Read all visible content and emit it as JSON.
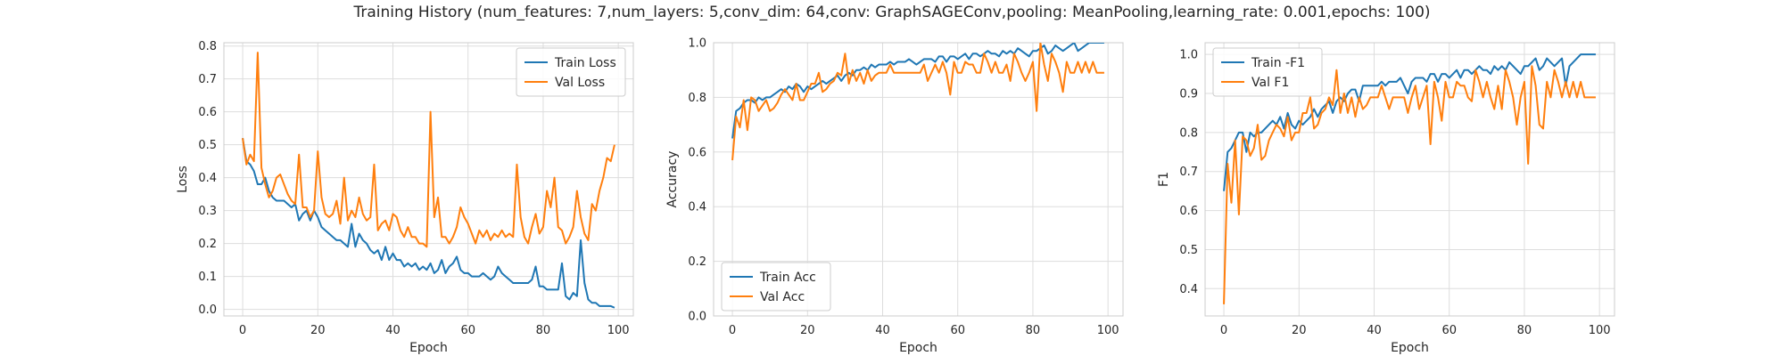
{
  "figure": {
    "suptitle": "Training History (num_features: 7,num_layers: 5,conv_dim: 64,conv: GraphSAGEConv,pooling: MeanPooling,learning_rate: 0.001,epochs: 100)"
  },
  "colors": {
    "series1": "#1f77b4",
    "series2": "#ff7f0e",
    "grid": "#dddddd",
    "frame": "#cccccc"
  },
  "chart_data": [
    {
      "type": "line",
      "xlabel": "Epoch",
      "ylabel": "Loss",
      "xlim": [
        -5,
        104
      ],
      "ylim": [
        -0.02,
        0.81
      ],
      "xticks": [
        0,
        20,
        40,
        60,
        80,
        100
      ],
      "yticks": [
        0.0,
        0.1,
        0.2,
        0.3,
        0.4,
        0.5,
        0.6,
        0.7,
        0.8
      ],
      "ytick_decimals": 1,
      "legend": "top-right",
      "series": [
        {
          "name": "Train Loss",
          "values": [
            0.52,
            0.45,
            0.44,
            0.42,
            0.38,
            0.38,
            0.4,
            0.36,
            0.34,
            0.33,
            0.33,
            0.33,
            0.32,
            0.31,
            0.32,
            0.27,
            0.29,
            0.3,
            0.27,
            0.3,
            0.28,
            0.25,
            0.24,
            0.23,
            0.22,
            0.21,
            0.21,
            0.2,
            0.19,
            0.26,
            0.19,
            0.23,
            0.21,
            0.2,
            0.18,
            0.17,
            0.18,
            0.15,
            0.19,
            0.15,
            0.17,
            0.15,
            0.15,
            0.13,
            0.14,
            0.13,
            0.14,
            0.12,
            0.13,
            0.12,
            0.14,
            0.11,
            0.12,
            0.15,
            0.11,
            0.13,
            0.14,
            0.16,
            0.12,
            0.11,
            0.11,
            0.1,
            0.1,
            0.1,
            0.11,
            0.1,
            0.09,
            0.1,
            0.13,
            0.11,
            0.1,
            0.09,
            0.08,
            0.08,
            0.08,
            0.08,
            0.08,
            0.09,
            0.13,
            0.07,
            0.07,
            0.06,
            0.06,
            0.06,
            0.06,
            0.14,
            0.04,
            0.03,
            0.05,
            0.04,
            0.21,
            0.08,
            0.03,
            0.02,
            0.02,
            0.01,
            0.01,
            0.01,
            0.01,
            0.005
          ]
        },
        {
          "name": "Val Loss",
          "values": [
            0.52,
            0.44,
            0.47,
            0.45,
            0.78,
            0.43,
            0.38,
            0.34,
            0.36,
            0.4,
            0.41,
            0.38,
            0.35,
            0.33,
            0.32,
            0.47,
            0.31,
            0.31,
            0.28,
            0.3,
            0.48,
            0.34,
            0.29,
            0.28,
            0.29,
            0.33,
            0.26,
            0.4,
            0.27,
            0.3,
            0.28,
            0.34,
            0.29,
            0.27,
            0.28,
            0.44,
            0.24,
            0.26,
            0.27,
            0.24,
            0.29,
            0.28,
            0.24,
            0.22,
            0.25,
            0.22,
            0.22,
            0.2,
            0.2,
            0.19,
            0.6,
            0.28,
            0.34,
            0.22,
            0.22,
            0.2,
            0.22,
            0.25,
            0.31,
            0.28,
            0.26,
            0.23,
            0.2,
            0.24,
            0.22,
            0.24,
            0.21,
            0.23,
            0.22,
            0.24,
            0.22,
            0.23,
            0.22,
            0.44,
            0.28,
            0.22,
            0.2,
            0.25,
            0.29,
            0.23,
            0.25,
            0.36,
            0.31,
            0.4,
            0.25,
            0.24,
            0.2,
            0.22,
            0.25,
            0.36,
            0.28,
            0.23,
            0.21,
            0.32,
            0.3,
            0.36,
            0.4,
            0.46,
            0.45,
            0.5
          ]
        }
      ]
    },
    {
      "type": "line",
      "xlabel": "Epoch",
      "ylabel": "Accuracy",
      "xlim": [
        -5,
        104
      ],
      "ylim": [
        0.0,
        1.0
      ],
      "xticks": [
        0,
        20,
        40,
        60,
        80,
        100
      ],
      "yticks": [
        0.0,
        0.2,
        0.4,
        0.6,
        0.8,
        1.0
      ],
      "ytick_decimals": 1,
      "legend": "bottom-left",
      "series": [
        {
          "name": "Train Acc",
          "values": [
            0.65,
            0.75,
            0.76,
            0.78,
            0.79,
            0.79,
            0.78,
            0.8,
            0.79,
            0.8,
            0.8,
            0.81,
            0.82,
            0.83,
            0.82,
            0.84,
            0.83,
            0.85,
            0.84,
            0.82,
            0.84,
            0.83,
            0.84,
            0.85,
            0.86,
            0.85,
            0.86,
            0.87,
            0.88,
            0.86,
            0.88,
            0.89,
            0.88,
            0.9,
            0.9,
            0.91,
            0.9,
            0.92,
            0.91,
            0.92,
            0.92,
            0.92,
            0.93,
            0.92,
            0.93,
            0.93,
            0.93,
            0.94,
            0.93,
            0.92,
            0.93,
            0.94,
            0.94,
            0.94,
            0.93,
            0.95,
            0.95,
            0.93,
            0.95,
            0.95,
            0.94,
            0.95,
            0.96,
            0.94,
            0.96,
            0.96,
            0.95,
            0.96,
            0.97,
            0.96,
            0.96,
            0.95,
            0.97,
            0.96,
            0.97,
            0.96,
            0.98,
            0.97,
            0.96,
            0.95,
            0.97,
            0.97,
            0.98,
            0.99,
            0.96,
            0.97,
            0.99,
            0.98,
            0.97,
            0.98,
            0.99,
            1.0,
            0.97,
            0.98,
            0.99,
            1.0,
            1.0,
            1.0,
            1.0,
            1.0
          ]
        },
        {
          "name": "Val Acc",
          "values": [
            0.57,
            0.73,
            0.69,
            0.79,
            0.68,
            0.8,
            0.79,
            0.75,
            0.77,
            0.79,
            0.75,
            0.76,
            0.78,
            0.81,
            0.83,
            0.81,
            0.79,
            0.85,
            0.79,
            0.79,
            0.82,
            0.85,
            0.85,
            0.89,
            0.82,
            0.83,
            0.85,
            0.86,
            0.89,
            0.88,
            0.96,
            0.85,
            0.9,
            0.86,
            0.89,
            0.85,
            0.9,
            0.86,
            0.88,
            0.89,
            0.89,
            0.89,
            0.92,
            0.89,
            0.89,
            0.89,
            0.89,
            0.89,
            0.89,
            0.89,
            0.89,
            0.92,
            0.86,
            0.89,
            0.92,
            0.89,
            0.93,
            0.89,
            0.81,
            0.93,
            0.89,
            0.89,
            0.93,
            0.92,
            0.92,
            0.89,
            0.89,
            0.96,
            0.93,
            0.89,
            0.93,
            0.89,
            0.89,
            0.92,
            0.86,
            0.96,
            0.93,
            0.89,
            0.86,
            0.89,
            0.93,
            0.75,
            1.0,
            0.92,
            0.86,
            0.96,
            0.93,
            0.89,
            0.82,
            0.93,
            0.89,
            0.89,
            0.93,
            0.89,
            0.93,
            0.89,
            0.93,
            0.89,
            0.89,
            0.89
          ]
        }
      ]
    },
    {
      "type": "line",
      "xlabel": "Epoch",
      "ylabel": "F1",
      "xlim": [
        -5,
        104
      ],
      "ylim": [
        0.33,
        1.03
      ],
      "xticks": [
        0,
        20,
        40,
        60,
        80,
        100
      ],
      "yticks": [
        0.4,
        0.5,
        0.6,
        0.7,
        0.8,
        0.9,
        1.0
      ],
      "ytick_decimals": 1,
      "legend": "top-left",
      "series": [
        {
          "name": "Train -F1",
          "values": [
            0.65,
            0.75,
            0.76,
            0.78,
            0.8,
            0.8,
            0.75,
            0.8,
            0.79,
            0.8,
            0.8,
            0.81,
            0.82,
            0.83,
            0.82,
            0.84,
            0.81,
            0.85,
            0.82,
            0.81,
            0.83,
            0.82,
            0.83,
            0.84,
            0.86,
            0.84,
            0.86,
            0.87,
            0.88,
            0.85,
            0.88,
            0.89,
            0.88,
            0.9,
            0.91,
            0.91,
            0.88,
            0.92,
            0.92,
            0.92,
            0.92,
            0.92,
            0.93,
            0.92,
            0.93,
            0.93,
            0.93,
            0.94,
            0.92,
            0.9,
            0.93,
            0.94,
            0.94,
            0.94,
            0.93,
            0.95,
            0.95,
            0.93,
            0.95,
            0.95,
            0.94,
            0.95,
            0.96,
            0.94,
            0.96,
            0.96,
            0.95,
            0.96,
            0.97,
            0.96,
            0.96,
            0.95,
            0.97,
            0.96,
            0.97,
            0.96,
            0.98,
            0.97,
            0.96,
            0.95,
            0.97,
            0.97,
            0.98,
            0.99,
            0.96,
            0.97,
            0.99,
            0.98,
            0.97,
            0.98,
            0.99,
            0.92,
            0.97,
            0.98,
            0.99,
            1.0,
            1.0,
            1.0,
            1.0,
            1.0
          ]
        },
        {
          "name": "Val F1",
          "values": [
            0.36,
            0.72,
            0.62,
            0.78,
            0.59,
            0.79,
            0.78,
            0.74,
            0.76,
            0.82,
            0.73,
            0.74,
            0.78,
            0.8,
            0.82,
            0.81,
            0.79,
            0.84,
            0.78,
            0.8,
            0.8,
            0.85,
            0.85,
            0.89,
            0.81,
            0.82,
            0.85,
            0.86,
            0.89,
            0.87,
            0.96,
            0.85,
            0.9,
            0.85,
            0.89,
            0.84,
            0.89,
            0.86,
            0.87,
            0.89,
            0.89,
            0.89,
            0.92,
            0.89,
            0.86,
            0.89,
            0.89,
            0.89,
            0.89,
            0.85,
            0.89,
            0.92,
            0.86,
            0.89,
            0.92,
            0.77,
            0.93,
            0.89,
            0.83,
            0.93,
            0.89,
            0.89,
            0.93,
            0.92,
            0.92,
            0.89,
            0.88,
            0.96,
            0.93,
            0.89,
            0.93,
            0.89,
            0.86,
            0.92,
            0.86,
            0.96,
            0.93,
            0.89,
            0.82,
            0.89,
            0.93,
            0.72,
            0.97,
            0.92,
            0.82,
            0.81,
            0.93,
            0.89,
            0.96,
            0.93,
            0.89,
            0.93,
            0.89,
            0.93,
            0.89,
            0.93,
            0.89,
            0.89,
            0.89,
            0.89
          ]
        }
      ]
    }
  ]
}
